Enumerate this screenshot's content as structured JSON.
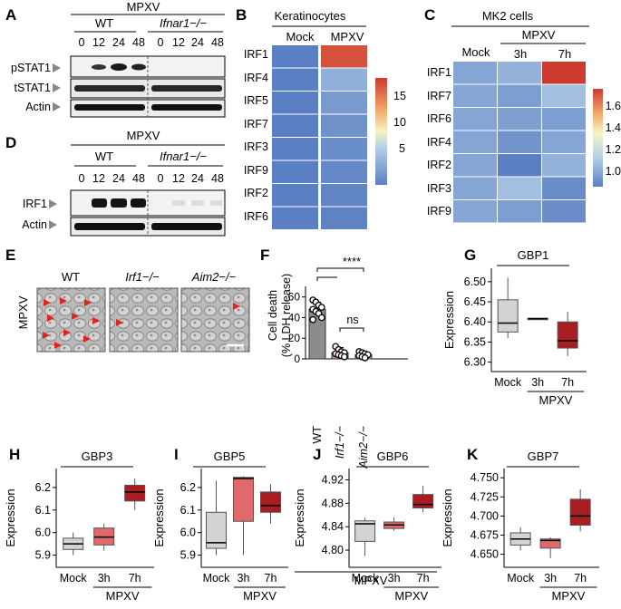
{
  "panels": {
    "A": {
      "letter": "A",
      "title": "MPXV",
      "groups": [
        "WT",
        "Ifnar1−/−"
      ],
      "timepoints": [
        "0",
        "12",
        "24",
        "48",
        "0",
        "12",
        "24",
        "48"
      ],
      "rows": [
        "pSTAT1",
        "tSTAT1",
        "Actin"
      ]
    },
    "D": {
      "letter": "D",
      "title": "MPXV",
      "groups": [
        "WT",
        "Ifnar1−/−"
      ],
      "timepoints": [
        "0",
        "12",
        "24",
        "48",
        "0",
        "12",
        "24",
        "48"
      ],
      "rows": [
        "IRF1",
        "Actin"
      ]
    },
    "B": {
      "letter": "B",
      "title": "Keratinocytes",
      "columns": [
        "Mock",
        "MPXV"
      ],
      "rows": [
        "IRF1",
        "IRF4",
        "IRF5",
        "IRF7",
        "IRF3",
        "IRF9",
        "IRF2",
        "IRF6"
      ],
      "values": [
        [
          1.0,
          19.0
        ],
        [
          1.0,
          5.0
        ],
        [
          1.0,
          3.2
        ],
        [
          1.0,
          2.6
        ],
        [
          1.0,
          2.2
        ],
        [
          1.0,
          1.8
        ],
        [
          1.0,
          1.6
        ],
        [
          1.0,
          1.3
        ]
      ],
      "scale_ticks": [
        "15",
        "10",
        "5"
      ],
      "scale_range": [
        1,
        20
      ]
    },
    "C": {
      "letter": "C",
      "title": "MK2 cells",
      "group_label": "MPXV",
      "columns": [
        "Mock",
        "3h",
        "7h"
      ],
      "rows": [
        "IRF1",
        "IRF7",
        "IRF6",
        "IRF4",
        "IRF2",
        "IRF3",
        "IRF9"
      ],
      "values": [
        [
          1.0,
          1.05,
          1.78
        ],
        [
          1.0,
          0.97,
          1.1
        ],
        [
          1.0,
          0.98,
          0.97
        ],
        [
          1.0,
          0.93,
          1.0
        ],
        [
          1.0,
          0.83,
          1.05
        ],
        [
          1.0,
          1.1,
          0.9
        ],
        [
          1.0,
          0.97,
          0.91
        ]
      ],
      "scale_ticks": [
        "1.6",
        "1.4",
        "1.2",
        "1.0"
      ],
      "scale_range": [
        0.85,
        1.75
      ]
    },
    "E": {
      "letter": "E",
      "side_label": "MPXV",
      "images": [
        "WT",
        "Irf1−/−",
        "Aim2−/−"
      ]
    },
    "F": {
      "letter": "F",
      "ylabel_lines": [
        "Cell death",
        "(% LDH release)"
      ],
      "yticks": [
        "0",
        "20",
        "40",
        "60"
      ],
      "significance": [
        "****",
        "ns"
      ],
      "bottom_label": "MPXV"
    },
    "G": {
      "letter": "G",
      "gene": "GBP1",
      "yticks": [
        "6.50",
        "6.45",
        "6.40",
        "6.35",
        "6.30"
      ],
      "xlabels": [
        "Mock",
        "3h",
        "7h"
      ],
      "group_label": "MPXV",
      "ylabel": "Expression"
    },
    "H": {
      "letter": "H",
      "gene": "GBP3",
      "yticks": [
        "6.2",
        "6.1",
        "6.0",
        "5.9"
      ],
      "xlabels": [
        "Mock",
        "3h",
        "7h"
      ],
      "group_label": "MPXV",
      "ylabel": "Expression"
    },
    "I": {
      "letter": "I",
      "gene": "GBP5",
      "yticks": [
        "6.2",
        "6.1",
        "6.0",
        "5.9"
      ],
      "xlabels": [
        "Mock",
        "3h",
        "7h"
      ],
      "group_label": "MPXV",
      "ylabel": "Expression"
    },
    "J": {
      "letter": "J",
      "gene": "GBP6",
      "yticks": [
        "4.92",
        "4.88",
        "4.84",
        "4.80"
      ],
      "xlabels": [
        "Mock",
        "3h",
        "7h"
      ],
      "group_label": "MPXV",
      "ylabel": "Expression"
    },
    "K": {
      "letter": "K",
      "gene": "GBP7",
      "yticks": [
        "4.750",
        "4.725",
        "4.700",
        "4.675",
        "4.650"
      ],
      "xlabels": [
        "Mock",
        "3h",
        "7h"
      ],
      "group_label": "MPXV",
      "ylabel": "Expression"
    }
  },
  "chart_data": [
    {
      "type": "heatmap",
      "title": "Keratinocytes",
      "columns": [
        "Mock",
        "MPXV"
      ],
      "rows": [
        "IRF1",
        "IRF4",
        "IRF5",
        "IRF7",
        "IRF3",
        "IRF9",
        "IRF2",
        "IRF6"
      ],
      "values": [
        [
          1.0,
          19.0
        ],
        [
          1.0,
          5.0
        ],
        [
          1.0,
          3.2
        ],
        [
          1.0,
          2.6
        ],
        [
          1.0,
          2.2
        ],
        [
          1.0,
          1.8
        ],
        [
          1.0,
          1.6
        ],
        [
          1.0,
          1.3
        ]
      ],
      "colorbar_ticks": [
        5,
        10,
        15
      ]
    },
    {
      "type": "heatmap",
      "title": "MK2 cells",
      "columns": [
        "Mock",
        "3h",
        "7h"
      ],
      "rows": [
        "IRF1",
        "IRF7",
        "IRF6",
        "IRF4",
        "IRF2",
        "IRF3",
        "IRF9"
      ],
      "values": [
        [
          1.0,
          1.05,
          1.78
        ],
        [
          1.0,
          0.97,
          1.1
        ],
        [
          1.0,
          0.98,
          0.97
        ],
        [
          1.0,
          0.93,
          1.0
        ],
        [
          1.0,
          0.83,
          1.05
        ],
        [
          1.0,
          1.1,
          0.9
        ],
        [
          1.0,
          0.97,
          0.91
        ]
      ],
      "colorbar_ticks": [
        1.0,
        1.2,
        1.4,
        1.6
      ]
    },
    {
      "type": "bar",
      "categories": [
        "WT",
        "Irf1−/−",
        "Aim2−/−"
      ],
      "values": [
        48,
        6,
        4
      ],
      "errors": [
        7,
        5,
        2
      ],
      "points": [
        [
          57,
          55,
          52,
          50,
          48,
          46,
          44,
          40,
          38
        ],
        [
          12,
          9,
          7,
          6,
          5,
          4,
          3,
          2
        ],
        [
          7,
          6,
          5,
          4,
          3,
          2,
          1
        ]
      ],
      "ylim": [
        0,
        65
      ],
      "colors": [
        "#8c8c8c",
        "#d97777",
        "#d9a060"
      ]
    },
    {
      "type": "box",
      "title": "GBP1",
      "categories": [
        "Mock",
        "3h",
        "7h"
      ],
      "ylim": [
        6.29,
        6.52
      ],
      "boxes": [
        {
          "min": 6.36,
          "q1": 6.375,
          "median": 6.397,
          "q3": 6.455,
          "max": 6.51
        },
        {
          "min": 6.406,
          "q1": 6.407,
          "median": 6.408,
          "q3": 6.409,
          "max": 6.41
        },
        {
          "min": 6.315,
          "q1": 6.335,
          "median": 6.353,
          "q3": 6.4,
          "max": 6.425
        }
      ],
      "colors": [
        "#d3d3d3",
        "#e06a6a",
        "#a71d22"
      ]
    },
    {
      "type": "box",
      "title": "GBP3",
      "categories": [
        "Mock",
        "3h",
        "7h"
      ],
      "ylim": [
        5.87,
        6.26
      ],
      "boxes": [
        {
          "min": 5.9,
          "q1": 5.925,
          "median": 5.95,
          "q3": 5.975,
          "max": 6.0
        },
        {
          "min": 5.92,
          "q1": 5.945,
          "median": 5.98,
          "q3": 6.02,
          "max": 6.04
        },
        {
          "min": 6.1,
          "q1": 6.14,
          "median": 6.18,
          "q3": 6.21,
          "max": 6.24
        }
      ],
      "colors": [
        "#d3d3d3",
        "#e06a6a",
        "#a71d22"
      ]
    },
    {
      "type": "box",
      "title": "GBP5",
      "categories": [
        "Mock",
        "3h",
        "7h"
      ],
      "ylim": [
        5.87,
        6.26
      ],
      "boxes": [
        {
          "min": 5.9,
          "q1": 5.93,
          "median": 5.955,
          "q3": 6.09,
          "max": 6.23
        },
        {
          "min": 5.9,
          "q1": 6.05,
          "median": 6.24,
          "q3": 6.245,
          "max": 6.25
        },
        {
          "min": 6.04,
          "q1": 6.09,
          "median": 6.12,
          "q3": 6.18,
          "max": 6.215
        }
      ],
      "colors": [
        "#d3d3d3",
        "#e06a6a",
        "#a71d22"
      ]
    },
    {
      "type": "box",
      "title": "GBP6",
      "categories": [
        "Mock",
        "3h",
        "7h"
      ],
      "ylim": [
        4.78,
        4.93
      ],
      "boxes": [
        {
          "min": 4.79,
          "q1": 4.815,
          "median": 4.845,
          "q3": 4.85,
          "max": 4.855
        },
        {
          "min": 4.833,
          "q1": 4.837,
          "median": 4.843,
          "q3": 4.848,
          "max": 4.856
        },
        {
          "min": 4.865,
          "q1": 4.872,
          "median": 4.878,
          "q3": 4.895,
          "max": 4.91
        }
      ],
      "colors": [
        "#d3d3d3",
        "#e06a6a",
        "#a71d22"
      ]
    },
    {
      "type": "box",
      "title": "GBP7",
      "categories": [
        "Mock",
        "3h",
        "7h"
      ],
      "ylim": [
        4.64,
        4.755
      ],
      "boxes": [
        {
          "min": 4.655,
          "q1": 4.662,
          "median": 4.67,
          "q3": 4.678,
          "max": 4.685
        },
        {
          "min": 4.645,
          "q1": 4.658,
          "median": 4.668,
          "q3": 4.67,
          "max": 4.672
        },
        {
          "min": 4.68,
          "q1": 4.688,
          "median": 4.7,
          "q3": 4.722,
          "max": 4.735
        }
      ],
      "colors": [
        "#d3d3d3",
        "#e06a6a",
        "#a71d22"
      ]
    }
  ]
}
